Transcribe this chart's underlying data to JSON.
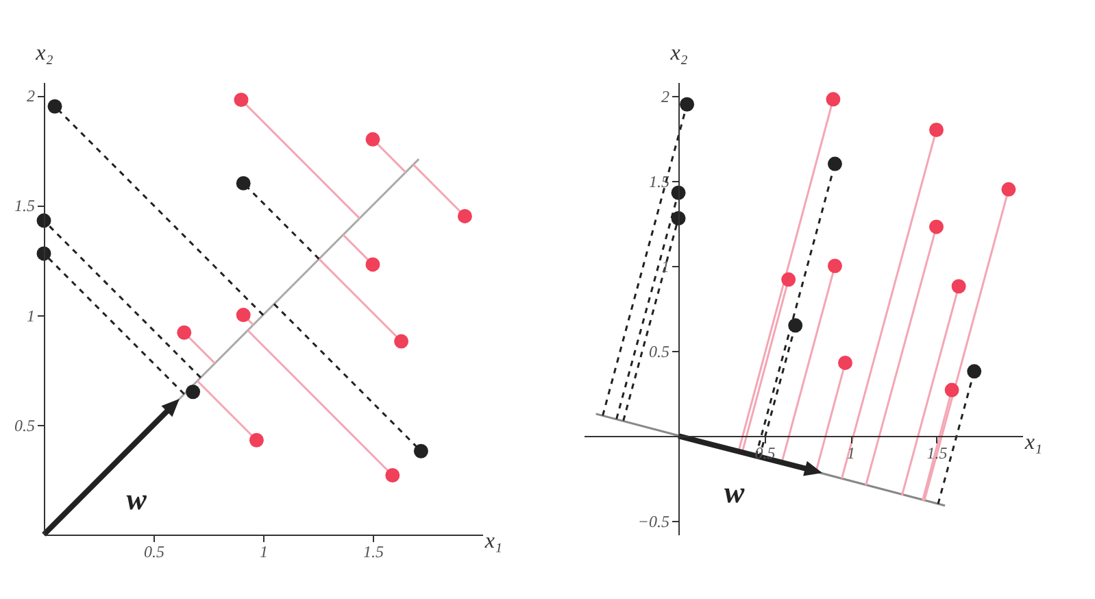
{
  "chart_data": [
    {
      "type": "scatter",
      "xlabel": "x₁",
      "ylabel": "x₂",
      "xlim": [
        0,
        2.0
      ],
      "ylim": [
        0,
        2.06
      ],
      "xticks": [
        0.5,
        1,
        1.5
      ],
      "yticks": [
        0.5,
        1,
        1.5,
        2
      ],
      "grid": false,
      "annotations": [
        "w"
      ],
      "series": [
        {
          "type": "line",
          "color": "#aaaaaa",
          "line_style": "solid",
          "x": [
            0,
            1.71
          ],
          "values": [
            0,
            1.71
          ]
        },
        {
          "type": "line",
          "color": "#222222",
          "line_style": "dashed",
          "x": [
            0.05,
            1.0
          ],
          "values": [
            1.95,
            1.0
          ]
        },
        {
          "type": "line",
          "color": "#222222",
          "line_style": "dashed",
          "x": [
            0.0,
            0.715
          ],
          "values": [
            1.43,
            0.715
          ]
        },
        {
          "type": "line",
          "color": "#222222",
          "line_style": "dashed",
          "x": [
            0.0,
            0.64
          ],
          "values": [
            1.28,
            0.64
          ]
        },
        {
          "type": "line",
          "color": "#222222",
          "line_style": "dashed",
          "x": [
            0.91,
            1.255
          ],
          "values": [
            1.6,
            1.255
          ]
        },
        {
          "type": "line",
          "color": "#222222",
          "line_style": "dashed",
          "x": [
            1.72,
            1.05
          ],
          "values": [
            0.38,
            1.05
          ]
        },
        {
          "type": "line",
          "color": "#f4a6b4",
          "line_style": "solid",
          "x": [
            0.9,
            1.44
          ],
          "values": [
            1.98,
            1.44
          ]
        },
        {
          "type": "line",
          "color": "#f4a6b4",
          "line_style": "solid",
          "x": [
            1.5,
            1.65
          ],
          "values": [
            1.8,
            1.65
          ]
        },
        {
          "type": "line",
          "color": "#f4a6b4",
          "line_style": "solid",
          "x": [
            1.92,
            1.685
          ],
          "values": [
            1.45,
            1.685
          ]
        },
        {
          "type": "line",
          "color": "#f4a6b4",
          "line_style": "solid",
          "x": [
            1.5,
            1.365
          ],
          "values": [
            1.23,
            1.365
          ]
        },
        {
          "type": "line",
          "color": "#f4a6b4",
          "line_style": "solid",
          "x": [
            0.91,
            0.955
          ],
          "values": [
            1.0,
            0.955
          ]
        },
        {
          "type": "line",
          "color": "#f4a6b4",
          "line_style": "solid",
          "x": [
            1.63,
            1.255
          ],
          "values": [
            0.88,
            1.255
          ]
        },
        {
          "type": "line",
          "color": "#f4a6b4",
          "line_style": "solid",
          "x": [
            0.64,
            0.78
          ],
          "values": [
            0.92,
            0.78
          ]
        },
        {
          "type": "line",
          "color": "#f4a6b4",
          "line_style": "solid",
          "x": [
            0.97,
            0.7
          ],
          "values": [
            0.43,
            0.7
          ]
        },
        {
          "type": "line",
          "color": "#f4a6b4",
          "line_style": "solid",
          "x": [
            1.59,
            0.93
          ],
          "values": [
            0.27,
            0.93
          ]
        },
        {
          "type": "line",
          "color": "#222222",
          "line_style": "solid",
          "marker": "triangle",
          "x": [
            0,
            0.58
          ],
          "values": [
            0,
            0.58
          ]
        },
        {
          "color": "#222222",
          "marker": "circle",
          "x": [
            0.05,
            0.0,
            0.0,
            0.91,
            0.68,
            1.72
          ],
          "values": [
            1.95,
            1.43,
            1.28,
            1.6,
            0.65,
            0.38
          ]
        },
        {
          "color": "#f0405a",
          "marker": "circle",
          "x": [
            0.9,
            1.5,
            1.92,
            1.5,
            0.91,
            1.63,
            0.64,
            0.97,
            1.59
          ],
          "values": [
            1.98,
            1.8,
            1.45,
            1.23,
            1.0,
            0.88,
            0.92,
            0.43,
            0.27
          ]
        }
      ]
    },
    {
      "type": "scatter",
      "xlabel": "x₁",
      "ylabel": "x₂",
      "xlim": [
        -0.55,
        2.0
      ],
      "ylim": [
        -0.58,
        2.08
      ],
      "xticks": [
        0.5,
        1,
        1.5
      ],
      "yticks": [
        -0.5,
        0.5,
        1,
        1.5,
        2
      ],
      "grid": false,
      "annotations": [
        "w"
      ],
      "series": [
        {
          "type": "line",
          "color": "#888888",
          "line_style": "solid",
          "x": [
            -0.48,
            1.55
          ],
          "values": [
            0.13,
            -0.41
          ]
        },
        {
          "type": "line",
          "color": "#222222",
          "line_style": "dashed",
          "x": [
            0.05,
            -0.44
          ],
          "values": [
            1.95,
            0.12
          ]
        },
        {
          "type": "line",
          "color": "#222222",
          "line_style": "dashed",
          "x": [
            0.0,
            -0.36
          ],
          "values": [
            1.43,
            0.1
          ]
        },
        {
          "type": "line",
          "color": "#222222",
          "line_style": "dashed",
          "x": [
            0.0,
            -0.32
          ],
          "values": [
            1.28,
            0.09
          ]
        },
        {
          "type": "line",
          "color": "#222222",
          "line_style": "dashed",
          "x": [
            0.91,
            0.45
          ],
          "values": [
            1.6,
            -0.12
          ]
        },
        {
          "type": "line",
          "color": "#222222",
          "line_style": "dashed",
          "x": [
            0.68,
            0.47
          ],
          "values": [
            0.65,
            -0.13
          ]
        },
        {
          "type": "line",
          "color": "#222222",
          "line_style": "dashed",
          "x": [
            1.72,
            1.51
          ],
          "values": [
            0.38,
            -0.4
          ]
        },
        {
          "type": "line",
          "color": "#f4a6b4",
          "line_style": "solid",
          "x": [
            0.9,
            0.35
          ],
          "values": [
            1.98,
            -0.09
          ]
        },
        {
          "type": "line",
          "color": "#f4a6b4",
          "line_style": "solid",
          "x": [
            1.5,
            0.95
          ],
          "values": [
            1.8,
            -0.25
          ]
        },
        {
          "type": "line",
          "color": "#f4a6b4",
          "line_style": "solid",
          "x": [
            1.92,
            1.43
          ],
          "values": [
            1.45,
            -0.38
          ]
        },
        {
          "type": "line",
          "color": "#f4a6b4",
          "line_style": "solid",
          "x": [
            1.5,
            1.09
          ],
          "values": [
            1.23,
            -0.29
          ]
        },
        {
          "type": "line",
          "color": "#f4a6b4",
          "line_style": "solid",
          "x": [
            0.91,
            0.6
          ],
          "values": [
            1.0,
            -0.16
          ]
        },
        {
          "type": "line",
          "color": "#f4a6b4",
          "line_style": "solid",
          "x": [
            1.63,
            1.3
          ],
          "values": [
            0.88,
            -0.35
          ]
        },
        {
          "type": "line",
          "color": "#f4a6b4",
          "line_style": "solid",
          "x": [
            0.64,
            0.37
          ],
          "values": [
            0.92,
            -0.1
          ]
        },
        {
          "type": "line",
          "color": "#f4a6b4",
          "line_style": "solid",
          "x": [
            0.97,
            0.8
          ],
          "values": [
            0.43,
            -0.21
          ]
        },
        {
          "type": "line",
          "color": "#f4a6b4",
          "line_style": "solid",
          "x": [
            1.59,
            1.42
          ],
          "values": [
            0.27,
            -0.38
          ]
        },
        {
          "type": "line",
          "color": "#222222",
          "line_style": "solid",
          "marker": "triangle",
          "x": [
            0,
            0.77
          ],
          "values": [
            0,
            -0.2
          ]
        },
        {
          "color": "#222222",
          "marker": "circle",
          "x": [
            0.05,
            0.0,
            0.0,
            0.91,
            0.68,
            1.72
          ],
          "values": [
            1.95,
            1.43,
            1.28,
            1.6,
            0.65,
            0.38
          ]
        },
        {
          "color": "#f0405a",
          "marker": "circle",
          "x": [
            0.9,
            1.5,
            1.92,
            1.5,
            0.91,
            1.63,
            0.64,
            0.97,
            1.59
          ],
          "values": [
            1.98,
            1.8,
            1.45,
            1.23,
            1.0,
            0.88,
            0.92,
            0.43,
            0.27
          ]
        }
      ]
    }
  ]
}
